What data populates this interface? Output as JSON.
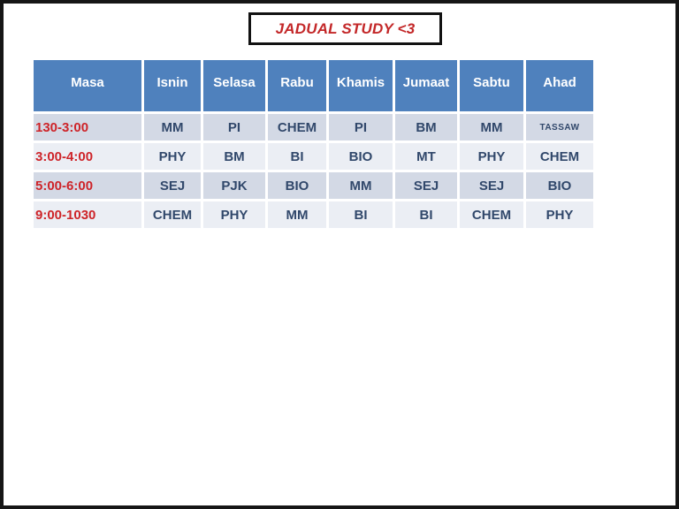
{
  "slide": {
    "title": "JADUAL STUDY <3"
  },
  "timetable": {
    "columns": [
      "Masa",
      "Isnin",
      "Selasa",
      "Rabu",
      "Khamis",
      "Jumaat",
      "Sabtu",
      "Ahad"
    ],
    "rows": [
      {
        "time": "130-3:00",
        "subjects": [
          "MM",
          "PI",
          "CHEM",
          "PI",
          "BM",
          "MM",
          "TASSAW"
        ]
      },
      {
        "time": "3:00-4:00",
        "subjects": [
          "PHY",
          "BM",
          "BI",
          "BIO",
          "MT",
          "PHY",
          "CHEM"
        ]
      },
      {
        "time": "5:00-6:00",
        "subjects": [
          "SEJ",
          "PJK",
          "BIO",
          "MM",
          "SEJ",
          "SEJ",
          "BIO"
        ]
      },
      {
        "time": "9:00-1030",
        "subjects": [
          "CHEM",
          "PHY",
          "MM",
          "BI",
          "BI",
          "CHEM",
          "PHY"
        ]
      }
    ]
  },
  "colors": {
    "header_bg": "#4F81BD",
    "header_text": "#FFFFFF",
    "band_dark": "#D3D9E5",
    "band_light": "#EBEEF4",
    "time_text": "#CE2429",
    "title_text": "#C32728",
    "subject_text": "#31486B",
    "frame_border": "#161616"
  }
}
